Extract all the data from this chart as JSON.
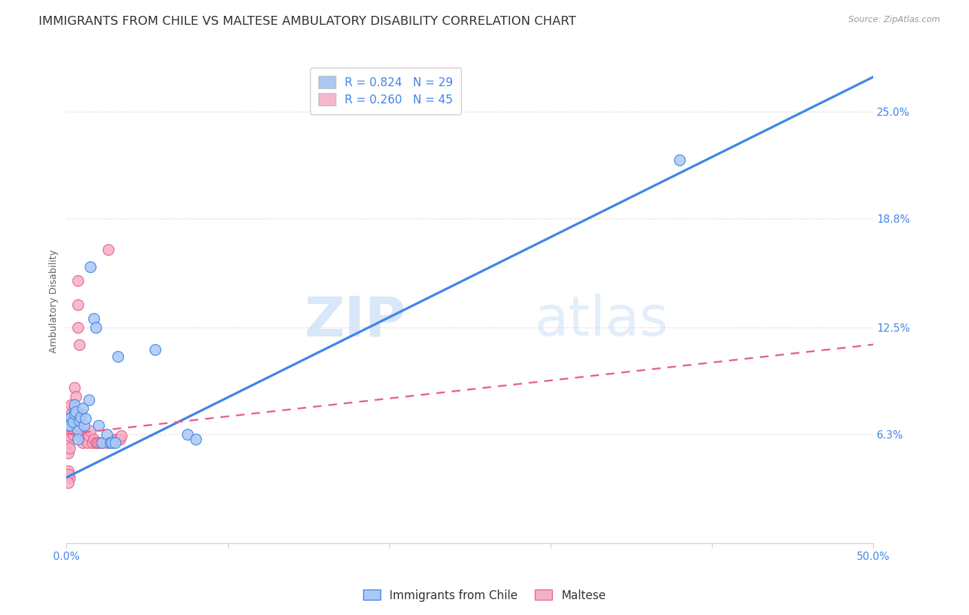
{
  "title": "IMMIGRANTS FROM CHILE VS MALTESE AMBULATORY DISABILITY CORRELATION CHART",
  "source": "Source: ZipAtlas.com",
  "ylabel": "Ambulatory Disability",
  "xlim": [
    0.0,
    0.5
  ],
  "ylim": [
    0.0,
    0.28
  ],
  "ytick_labels_right": [
    "6.3%",
    "12.5%",
    "18.8%",
    "25.0%"
  ],
  "ytick_vals_right": [
    0.063,
    0.125,
    0.188,
    0.25
  ],
  "legend_entries": [
    {
      "label": "R = 0.824   N = 29",
      "color": "#adc8f0"
    },
    {
      "label": "R = 0.260   N = 45",
      "color": "#f8b8cc"
    }
  ],
  "watermark_zip": "ZIP",
  "watermark_atlas": "atlas",
  "blue_color": "#4285e8",
  "pink_color": "#e8608a",
  "blue_fill": "#aac8f5",
  "pink_fill": "#f5b0c8",
  "chile_scatter": [
    [
      0.001,
      0.072
    ],
    [
      0.002,
      0.068
    ],
    [
      0.003,
      0.073
    ],
    [
      0.004,
      0.07
    ],
    [
      0.005,
      0.075
    ],
    [
      0.005,
      0.08
    ],
    [
      0.006,
      0.076
    ],
    [
      0.007,
      0.065
    ],
    [
      0.007,
      0.06
    ],
    [
      0.008,
      0.071
    ],
    [
      0.009,
      0.073
    ],
    [
      0.01,
      0.078
    ],
    [
      0.011,
      0.068
    ],
    [
      0.012,
      0.072
    ],
    [
      0.014,
      0.083
    ],
    [
      0.015,
      0.16
    ],
    [
      0.017,
      0.13
    ],
    [
      0.018,
      0.125
    ],
    [
      0.02,
      0.068
    ],
    [
      0.022,
      0.058
    ],
    [
      0.025,
      0.063
    ],
    [
      0.027,
      0.058
    ],
    [
      0.028,
      0.058
    ],
    [
      0.03,
      0.058
    ],
    [
      0.032,
      0.108
    ],
    [
      0.055,
      0.112
    ],
    [
      0.075,
      0.063
    ],
    [
      0.08,
      0.06
    ],
    [
      0.38,
      0.222
    ]
  ],
  "maltese_scatter": [
    [
      0.001,
      0.052
    ],
    [
      0.001,
      0.058
    ],
    [
      0.001,
      0.065
    ],
    [
      0.001,
      0.042
    ],
    [
      0.002,
      0.072
    ],
    [
      0.002,
      0.062
    ],
    [
      0.002,
      0.055
    ],
    [
      0.002,
      0.038
    ],
    [
      0.003,
      0.068
    ],
    [
      0.003,
      0.075
    ],
    [
      0.003,
      0.08
    ],
    [
      0.004,
      0.065
    ],
    [
      0.004,
      0.07
    ],
    [
      0.004,
      0.063
    ],
    [
      0.005,
      0.078
    ],
    [
      0.005,
      0.09
    ],
    [
      0.005,
      0.072
    ],
    [
      0.006,
      0.085
    ],
    [
      0.006,
      0.065
    ],
    [
      0.007,
      0.152
    ],
    [
      0.007,
      0.138
    ],
    [
      0.007,
      0.125
    ],
    [
      0.008,
      0.115
    ],
    [
      0.008,
      0.068
    ],
    [
      0.009,
      0.075
    ],
    [
      0.01,
      0.058
    ],
    [
      0.011,
      0.062
    ],
    [
      0.012,
      0.06
    ],
    [
      0.013,
      0.058
    ],
    [
      0.014,
      0.062
    ],
    [
      0.015,
      0.065
    ],
    [
      0.016,
      0.058
    ],
    [
      0.017,
      0.06
    ],
    [
      0.018,
      0.058
    ],
    [
      0.019,
      0.058
    ],
    [
      0.02,
      0.058
    ],
    [
      0.021,
      0.058
    ],
    [
      0.025,
      0.058
    ],
    [
      0.026,
      0.17
    ],
    [
      0.03,
      0.06
    ],
    [
      0.032,
      0.06
    ],
    [
      0.033,
      0.06
    ],
    [
      0.034,
      0.062
    ],
    [
      0.001,
      0.04
    ],
    [
      0.001,
      0.035
    ]
  ],
  "chile_line_x": [
    0.0,
    0.5
  ],
  "chile_line_y": [
    0.038,
    0.27
  ],
  "maltese_line_x": [
    0.0,
    0.5
  ],
  "maltese_line_y": [
    0.063,
    0.115
  ],
  "background_color": "#ffffff",
  "grid_color": "#e0e0e0",
  "title_fontsize": 13,
  "axis_label_fontsize": 10,
  "tick_fontsize": 11,
  "right_tick_color": "#4285e8",
  "text_color": "#333333"
}
